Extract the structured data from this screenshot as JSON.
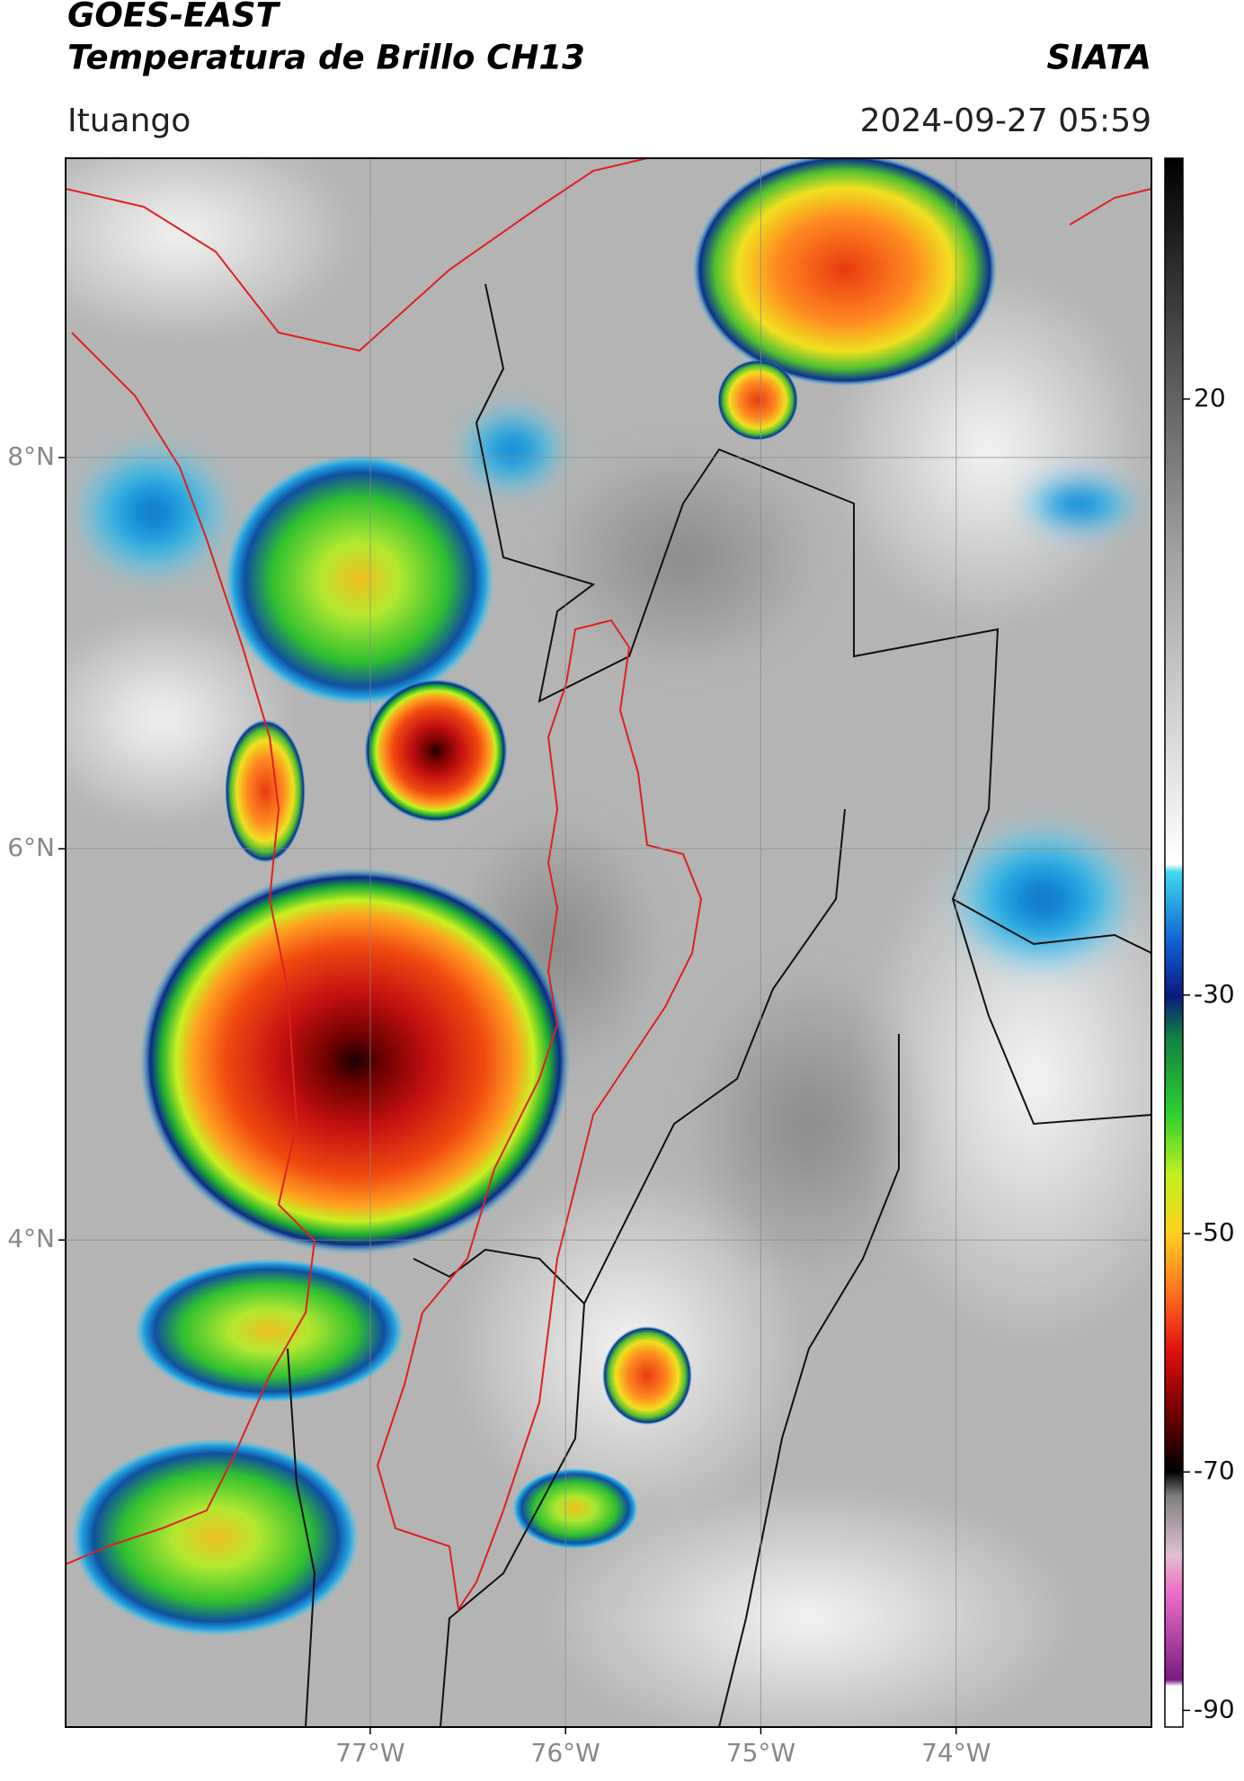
{
  "header": {
    "title": "GOES-EAST",
    "subtitle": "Temperatura de Brillo CH13",
    "source": "SIATA",
    "location": "Ituango",
    "datetime": "2024-09-27 05:59"
  },
  "map": {
    "xlim": [
      -78.56,
      -73.0
    ],
    "ylim": [
      1.51,
      9.53
    ],
    "grid": true,
    "xticks": [
      {
        "value": -77,
        "label": "77°W"
      },
      {
        "value": -76,
        "label": "76°W"
      },
      {
        "value": -75,
        "label": "75°W"
      },
      {
        "value": -74,
        "label": "74°W"
      }
    ],
    "yticks": [
      {
        "value": 4,
        "label": "4°N"
      },
      {
        "value": 6,
        "label": "6°N"
      },
      {
        "value": 8,
        "label": "8°N"
      }
    ]
  },
  "colorbar": {
    "lim": [
      -91.4,
      40.2
    ],
    "ticks": [
      -90,
      -70,
      -50,
      -30,
      20
    ]
  }
}
